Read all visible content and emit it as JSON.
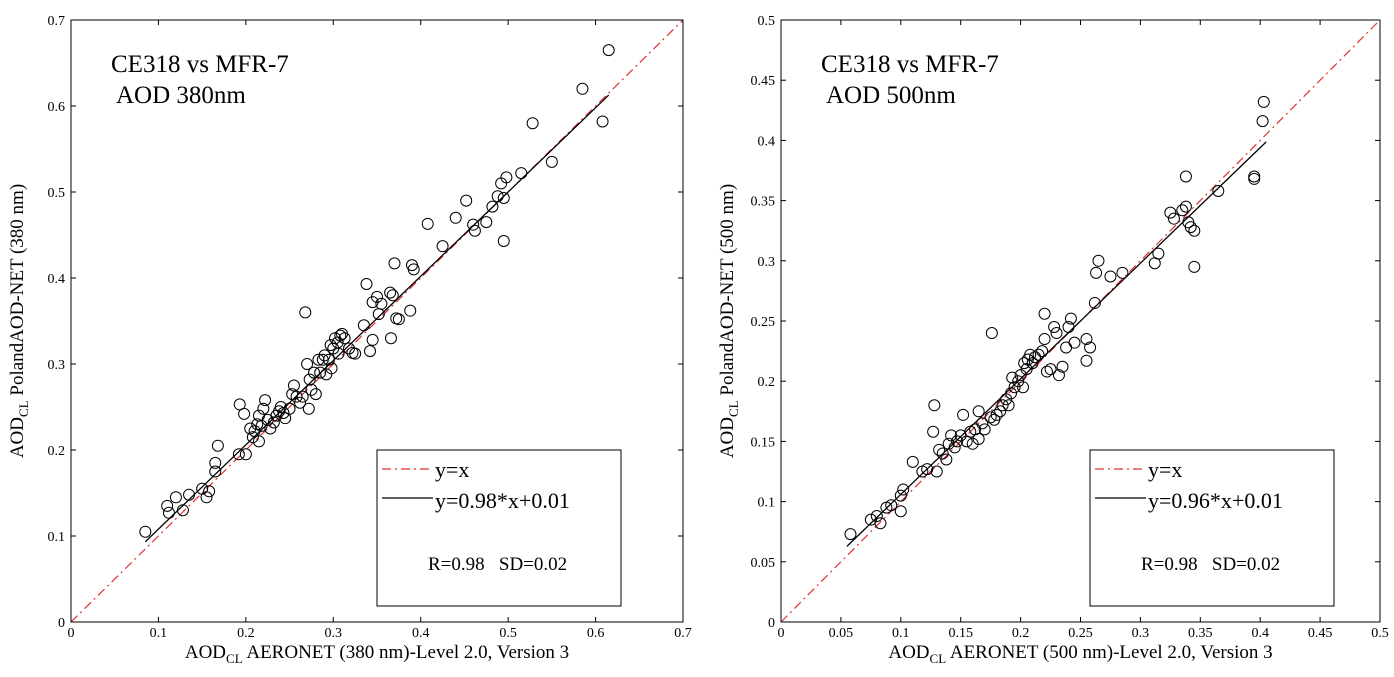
{
  "chart_data": [
    {
      "type": "scatter",
      "annotation_lines": [
        "CE318 vs MFR-7",
        "AOD 380nm"
      ],
      "xlabel": {
        "main": "AOD",
        "sub": "CL",
        "rest": " AERONET (380 nm)-Level 2.0, Version 3"
      },
      "ylabel": {
        "main": "AOD",
        "sub": "CL",
        "rest": " PolandAOD-NET (380 nm)"
      },
      "xlim": [
        0,
        0.7
      ],
      "ylim": [
        0,
        0.7
      ],
      "xticks": [
        0,
        0.1,
        0.2,
        0.3,
        0.4,
        0.5,
        0.6,
        0.7
      ],
      "yticks": [
        0,
        0.1,
        0.2,
        0.3,
        0.4,
        0.5,
        0.6,
        0.7
      ],
      "xtick_labels": [
        "0",
        "0.1",
        "0.2",
        "0.3",
        "0.4",
        "0.5",
        "0.6",
        "0.7"
      ],
      "ytick_labels": [
        "0",
        "0.1",
        "0.2",
        "0.3",
        "0.4",
        "0.5",
        "0.6",
        "0.7"
      ],
      "grid": false,
      "legend_position": "bottom-right",
      "legend": [
        {
          "label": "y=x",
          "style": "dashdot",
          "color": "#e03030"
        },
        {
          "label": "y=0.98*x+0.01",
          "style": "solid",
          "color": "#000000"
        }
      ],
      "stats_text": "R=0.98   SD=0.02",
      "identity_line": {
        "x": [
          0,
          0.7
        ],
        "y": [
          0,
          0.7
        ]
      },
      "fit_line": {
        "slope": 0.98,
        "intercept": 0.01,
        "x_range": [
          0.085,
          0.615
        ]
      },
      "points": [
        [
          0.085,
          0.105
        ],
        [
          0.11,
          0.135
        ],
        [
          0.112,
          0.127
        ],
        [
          0.12,
          0.145
        ],
        [
          0.128,
          0.13
        ],
        [
          0.135,
          0.148
        ],
        [
          0.15,
          0.155
        ],
        [
          0.155,
          0.145
        ],
        [
          0.158,
          0.152
        ],
        [
          0.165,
          0.175
        ],
        [
          0.165,
          0.185
        ],
        [
          0.168,
          0.205
        ],
        [
          0.192,
          0.195
        ],
        [
          0.193,
          0.253
        ],
        [
          0.198,
          0.242
        ],
        [
          0.2,
          0.195
        ],
        [
          0.205,
          0.225
        ],
        [
          0.208,
          0.215
        ],
        [
          0.21,
          0.222
        ],
        [
          0.213,
          0.23
        ],
        [
          0.215,
          0.21
        ],
        [
          0.215,
          0.24
        ],
        [
          0.218,
          0.228
        ],
        [
          0.22,
          0.248
        ],
        [
          0.222,
          0.258
        ],
        [
          0.225,
          0.235
        ],
        [
          0.228,
          0.225
        ],
        [
          0.232,
          0.232
        ],
        [
          0.235,
          0.24
        ],
        [
          0.238,
          0.245
        ],
        [
          0.24,
          0.25
        ],
        [
          0.243,
          0.243
        ],
        [
          0.245,
          0.237
        ],
        [
          0.25,
          0.248
        ],
        [
          0.253,
          0.265
        ],
        [
          0.255,
          0.275
        ],
        [
          0.258,
          0.262
        ],
        [
          0.262,
          0.255
        ],
        [
          0.265,
          0.262
        ],
        [
          0.268,
          0.36
        ],
        [
          0.27,
          0.3
        ],
        [
          0.272,
          0.248
        ],
        [
          0.273,
          0.282
        ],
        [
          0.275,
          0.27
        ],
        [
          0.278,
          0.29
        ],
        [
          0.28,
          0.265
        ],
        [
          0.283,
          0.305
        ],
        [
          0.285,
          0.29
        ],
        [
          0.288,
          0.305
        ],
        [
          0.29,
          0.31
        ],
        [
          0.292,
          0.288
        ],
        [
          0.295,
          0.305
        ],
        [
          0.297,
          0.322
        ],
        [
          0.298,
          0.295
        ],
        [
          0.3,
          0.318
        ],
        [
          0.302,
          0.33
        ],
        [
          0.305,
          0.325
        ],
        [
          0.306,
          0.312
        ],
        [
          0.308,
          0.333
        ],
        [
          0.31,
          0.335
        ],
        [
          0.313,
          0.33
        ],
        [
          0.318,
          0.318
        ],
        [
          0.322,
          0.313
        ],
        [
          0.325,
          0.312
        ],
        [
          0.335,
          0.345
        ],
        [
          0.338,
          0.393
        ],
        [
          0.342,
          0.315
        ],
        [
          0.345,
          0.328
        ],
        [
          0.345,
          0.372
        ],
        [
          0.35,
          0.378
        ],
        [
          0.352,
          0.358
        ],
        [
          0.355,
          0.37
        ],
        [
          0.365,
          0.383
        ],
        [
          0.366,
          0.33
        ],
        [
          0.368,
          0.38
        ],
        [
          0.37,
          0.417
        ],
        [
          0.372,
          0.353
        ],
        [
          0.375,
          0.352
        ],
        [
          0.388,
          0.362
        ],
        [
          0.39,
          0.415
        ],
        [
          0.392,
          0.41
        ],
        [
          0.408,
          0.463
        ],
        [
          0.425,
          0.437
        ],
        [
          0.44,
          0.47
        ],
        [
          0.452,
          0.49
        ],
        [
          0.46,
          0.462
        ],
        [
          0.462,
          0.455
        ],
        [
          0.475,
          0.465
        ],
        [
          0.482,
          0.483
        ],
        [
          0.488,
          0.495
        ],
        [
          0.492,
          0.51
        ],
        [
          0.495,
          0.493
        ],
        [
          0.495,
          0.443
        ],
        [
          0.498,
          0.517
        ],
        [
          0.515,
          0.522
        ],
        [
          0.528,
          0.58
        ],
        [
          0.55,
          0.535
        ],
        [
          0.585,
          0.62
        ],
        [
          0.608,
          0.582
        ],
        [
          0.615,
          0.665
        ]
      ]
    },
    {
      "type": "scatter",
      "annotation_lines": [
        "CE318 vs MFR-7",
        "AOD 500nm"
      ],
      "xlabel": {
        "main": "AOD",
        "sub": "CL",
        "rest": " AERONET (500 nm)-Level 2.0, Version 3"
      },
      "ylabel": {
        "main": "AOD",
        "sub": "CL",
        "rest": " PolandAOD-NET (500 nm)"
      },
      "xlim": [
        0,
        0.5
      ],
      "ylim": [
        0,
        0.5
      ],
      "xticks": [
        0,
        0.05,
        0.1,
        0.15,
        0.2,
        0.25,
        0.3,
        0.35,
        0.4,
        0.45,
        0.5
      ],
      "yticks": [
        0,
        0.05,
        0.1,
        0.15,
        0.2,
        0.25,
        0.3,
        0.35,
        0.4,
        0.45,
        0.5
      ],
      "xtick_labels": [
        "0",
        "0.05",
        "0.1",
        "0.15",
        "0.2",
        "0.25",
        "0.3",
        "0.35",
        "0.4",
        "0.45",
        "0.5"
      ],
      "ytick_labels": [
        "0",
        "0.05",
        "0.1",
        "0.15",
        "0.2",
        "0.25",
        "0.3",
        "0.35",
        "0.4",
        "0.45",
        "0.5"
      ],
      "grid": false,
      "legend_position": "bottom-right",
      "legend": [
        {
          "label": "y=x",
          "style": "dashdot",
          "color": "#e03030"
        },
        {
          "label": "y=0.96*x+0.01",
          "style": "solid",
          "color": "#000000"
        }
      ],
      "stats_text": "R=0.98   SD=0.02",
      "identity_line": {
        "x": [
          0,
          0.5
        ],
        "y": [
          0,
          0.5
        ]
      },
      "fit_line": {
        "slope": 0.96,
        "intercept": 0.01,
        "x_range": [
          0.055,
          0.405
        ]
      },
      "points": [
        [
          0.058,
          0.073
        ],
        [
          0.075,
          0.085
        ],
        [
          0.08,
          0.088
        ],
        [
          0.083,
          0.082
        ],
        [
          0.088,
          0.095
        ],
        [
          0.092,
          0.097
        ],
        [
          0.1,
          0.092
        ],
        [
          0.1,
          0.105
        ],
        [
          0.102,
          0.11
        ],
        [
          0.11,
          0.133
        ],
        [
          0.118,
          0.125
        ],
        [
          0.122,
          0.127
        ],
        [
          0.127,
          0.158
        ],
        [
          0.128,
          0.18
        ],
        [
          0.13,
          0.125
        ],
        [
          0.132,
          0.143
        ],
        [
          0.135,
          0.14
        ],
        [
          0.138,
          0.135
        ],
        [
          0.14,
          0.148
        ],
        [
          0.142,
          0.155
        ],
        [
          0.145,
          0.145
        ],
        [
          0.147,
          0.15
        ],
        [
          0.15,
          0.155
        ],
        [
          0.152,
          0.172
        ],
        [
          0.155,
          0.15
        ],
        [
          0.158,
          0.158
        ],
        [
          0.16,
          0.148
        ],
        [
          0.162,
          0.16
        ],
        [
          0.165,
          0.152
        ],
        [
          0.165,
          0.175
        ],
        [
          0.168,
          0.165
        ],
        [
          0.17,
          0.16
        ],
        [
          0.175,
          0.17
        ],
        [
          0.176,
          0.24
        ],
        [
          0.178,
          0.168
        ],
        [
          0.18,
          0.172
        ],
        [
          0.183,
          0.175
        ],
        [
          0.185,
          0.18
        ],
        [
          0.188,
          0.185
        ],
        [
          0.19,
          0.18
        ],
        [
          0.192,
          0.19
        ],
        [
          0.193,
          0.203
        ],
        [
          0.195,
          0.195
        ],
        [
          0.198,
          0.2
        ],
        [
          0.2,
          0.205
        ],
        [
          0.202,
          0.195
        ],
        [
          0.203,
          0.215
        ],
        [
          0.205,
          0.21
        ],
        [
          0.206,
          0.218
        ],
        [
          0.208,
          0.222
        ],
        [
          0.21,
          0.215
        ],
        [
          0.212,
          0.22
        ],
        [
          0.215,
          0.222
        ],
        [
          0.218,
          0.225
        ],
        [
          0.22,
          0.235
        ],
        [
          0.22,
          0.256
        ],
        [
          0.222,
          0.208
        ],
        [
          0.225,
          0.21
        ],
        [
          0.228,
          0.245
        ],
        [
          0.23,
          0.24
        ],
        [
          0.232,
          0.205
        ],
        [
          0.235,
          0.212
        ],
        [
          0.238,
          0.228
        ],
        [
          0.24,
          0.245
        ],
        [
          0.242,
          0.252
        ],
        [
          0.245,
          0.232
        ],
        [
          0.255,
          0.217
        ],
        [
          0.255,
          0.235
        ],
        [
          0.258,
          0.228
        ],
        [
          0.262,
          0.265
        ],
        [
          0.263,
          0.29
        ],
        [
          0.265,
          0.3
        ],
        [
          0.275,
          0.287
        ],
        [
          0.285,
          0.29
        ],
        [
          0.312,
          0.298
        ],
        [
          0.315,
          0.306
        ],
        [
          0.325,
          0.34
        ],
        [
          0.328,
          0.335
        ],
        [
          0.335,
          0.342
        ],
        [
          0.338,
          0.345
        ],
        [
          0.338,
          0.37
        ],
        [
          0.34,
          0.332
        ],
        [
          0.342,
          0.328
        ],
        [
          0.345,
          0.325
        ],
        [
          0.345,
          0.295
        ],
        [
          0.365,
          0.358
        ],
        [
          0.395,
          0.368
        ],
        [
          0.395,
          0.37
        ],
        [
          0.402,
          0.416
        ],
        [
          0.403,
          0.432
        ]
      ]
    }
  ]
}
